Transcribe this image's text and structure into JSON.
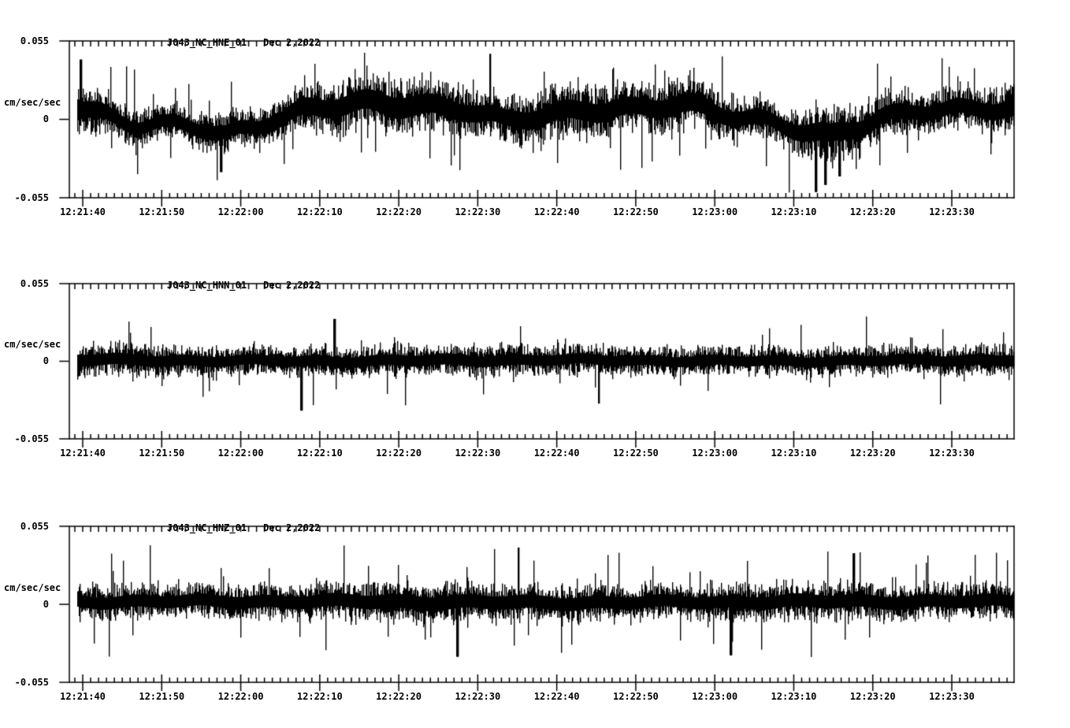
{
  "page": {
    "background": "#ffffff",
    "axis_color": "#000000"
  },
  "chart_data": [
    {
      "type": "line",
      "title": "J043_NC_HNE_01",
      "date": "Dec 2,2022",
      "ylabel": "cm/sec/sec",
      "ylim": [
        -0.055,
        0.055
      ],
      "yticks": [
        {
          "value": 0.055,
          "label": "0.055"
        },
        {
          "value": 0,
          "label": "0"
        },
        {
          "value": -0.055,
          "label": "-0.055"
        }
      ],
      "xticks": [
        "12:21:40",
        "12:21:50",
        "12:22:00",
        "12:22:10",
        "12:22:20",
        "12:22:30",
        "12:22:40",
        "12:22:50",
        "12:23:00",
        "12:23:10",
        "12:23:20",
        "12:23:30"
      ],
      "x_major_interval_s": 10,
      "x_minor_interval_s": 1,
      "line_color": "#000000",
      "waveform": {
        "seed": 11,
        "wander": 0.003,
        "spike_prob": 0.06,
        "spike_peak": 0.046,
        "mean_profile": [
          [
            0,
            0.01
          ],
          [
            0.03,
            0.006
          ],
          [
            0.07,
            -0.003
          ],
          [
            0.13,
            -0.006
          ],
          [
            0.165,
            -0.011
          ],
          [
            0.2,
            -0.002
          ],
          [
            0.25,
            0.007
          ],
          [
            0.31,
            0.01
          ],
          [
            0.36,
            0.012
          ],
          [
            0.42,
            0.007
          ],
          [
            0.46,
            -0.003
          ],
          [
            0.5,
            0.003
          ],
          [
            0.55,
            0.009
          ],
          [
            0.6,
            0.006
          ],
          [
            0.65,
            0.01
          ],
          [
            0.7,
            0.005
          ],
          [
            0.74,
            -0.001
          ],
          [
            0.78,
            -0.01
          ],
          [
            0.805,
            -0.014
          ],
          [
            0.83,
            -0.006
          ],
          [
            0.86,
            0.003
          ],
          [
            0.9,
            0.008
          ],
          [
            0.95,
            0.005
          ],
          [
            1,
            0.008
          ]
        ],
        "env_profile": [
          [
            0,
            0.019
          ],
          [
            0.05,
            0.013
          ],
          [
            0.1,
            0.012
          ],
          [
            0.15,
            0.014
          ],
          [
            0.2,
            0.013
          ],
          [
            0.25,
            0.017
          ],
          [
            0.3,
            0.019
          ],
          [
            0.35,
            0.021
          ],
          [
            0.4,
            0.018
          ],
          [
            0.45,
            0.016
          ],
          [
            0.5,
            0.018
          ],
          [
            0.55,
            0.019
          ],
          [
            0.6,
            0.017
          ],
          [
            0.65,
            0.019
          ],
          [
            0.7,
            0.015
          ],
          [
            0.75,
            0.014
          ],
          [
            0.8,
            0.019
          ],
          [
            0.85,
            0.016
          ],
          [
            0.9,
            0.014
          ],
          [
            0.95,
            0.015
          ],
          [
            1,
            0.017
          ]
        ],
        "extremes": [
          {
            "f": 0.012,
            "amp": 0.042
          },
          {
            "f": 0.16,
            "amp": -0.037
          },
          {
            "f": 0.445,
            "amp": 0.046
          },
          {
            "f": 0.79,
            "amp": -0.051
          },
          {
            "f": 0.8,
            "amp": -0.046
          },
          {
            "f": 0.815,
            "amp": -0.04
          }
        ]
      }
    },
    {
      "type": "line",
      "title": "J043_NC_HNN_01",
      "date": "Dec 2,2022",
      "ylabel": "cm/sec/sec",
      "ylim": [
        -0.055,
        0.055
      ],
      "yticks": [
        {
          "value": 0.055,
          "label": "0.055"
        },
        {
          "value": 0,
          "label": "0"
        },
        {
          "value": -0.055,
          "label": "-0.055"
        }
      ],
      "xticks": [
        "12:21:40",
        "12:21:50",
        "12:22:00",
        "12:22:10",
        "12:22:20",
        "12:22:30",
        "12:22:40",
        "12:22:50",
        "12:23:00",
        "12:23:10",
        "12:23:20",
        "12:23:30"
      ],
      "x_major_interval_s": 10,
      "x_minor_interval_s": 1,
      "line_color": "#000000",
      "waveform": {
        "seed": 22,
        "wander": 0.0008,
        "spike_prob": 0.04,
        "spike_peak": 0.032,
        "mean_profile": [
          [
            0,
            0.001
          ],
          [
            0.25,
            0.0
          ],
          [
            0.5,
            0.001
          ],
          [
            0.75,
            0.0
          ],
          [
            1,
            0.001
          ]
        ],
        "env_profile": [
          [
            0,
            0.012
          ],
          [
            0.08,
            0.011
          ],
          [
            0.2,
            0.01
          ],
          [
            0.4,
            0.011
          ],
          [
            0.6,
            0.01
          ],
          [
            0.8,
            0.01
          ],
          [
            1,
            0.011
          ]
        ],
        "extremes": [
          {
            "f": 0.245,
            "amp": -0.035
          },
          {
            "f": 0.28,
            "amp": 0.03
          },
          {
            "f": 0.56,
            "amp": -0.03
          }
        ]
      }
    },
    {
      "type": "line",
      "title": "J043_NC_HNZ_01",
      "date": "Dec 2,2022",
      "ylabel": "cm/sec/sec",
      "ylim": [
        -0.055,
        0.055
      ],
      "yticks": [
        {
          "value": 0.055,
          "label": "0.055"
        },
        {
          "value": 0,
          "label": "0"
        },
        {
          "value": -0.055,
          "label": "-0.055"
        }
      ],
      "xticks": [
        "12:21:40",
        "12:21:50",
        "12:22:00",
        "12:22:10",
        "12:22:20",
        "12:22:30",
        "12:22:40",
        "12:22:50",
        "12:23:00",
        "12:23:10",
        "12:23:20",
        "12:23:30"
      ],
      "x_major_interval_s": 10,
      "x_minor_interval_s": 1,
      "line_color": "#000000",
      "waveform": {
        "seed": 33,
        "wander": 0.001,
        "spike_prob": 0.05,
        "spike_peak": 0.04,
        "mean_profile": [
          [
            0,
            0.002
          ],
          [
            0.3,
            0.002
          ],
          [
            0.5,
            0.001
          ],
          [
            0.8,
            0.002
          ],
          [
            1,
            0.002
          ]
        ],
        "env_profile": [
          [
            0,
            0.012
          ],
          [
            0.2,
            0.012
          ],
          [
            0.35,
            0.014
          ],
          [
            0.5,
            0.013
          ],
          [
            0.65,
            0.012
          ],
          [
            0.8,
            0.013
          ],
          [
            1,
            0.012
          ]
        ],
        "extremes": [
          {
            "f": 0.41,
            "amp": -0.037
          },
          {
            "f": 0.475,
            "amp": 0.04
          },
          {
            "f": 0.7,
            "amp": -0.036
          },
          {
            "f": 0.83,
            "amp": 0.036
          }
        ]
      }
    }
  ]
}
